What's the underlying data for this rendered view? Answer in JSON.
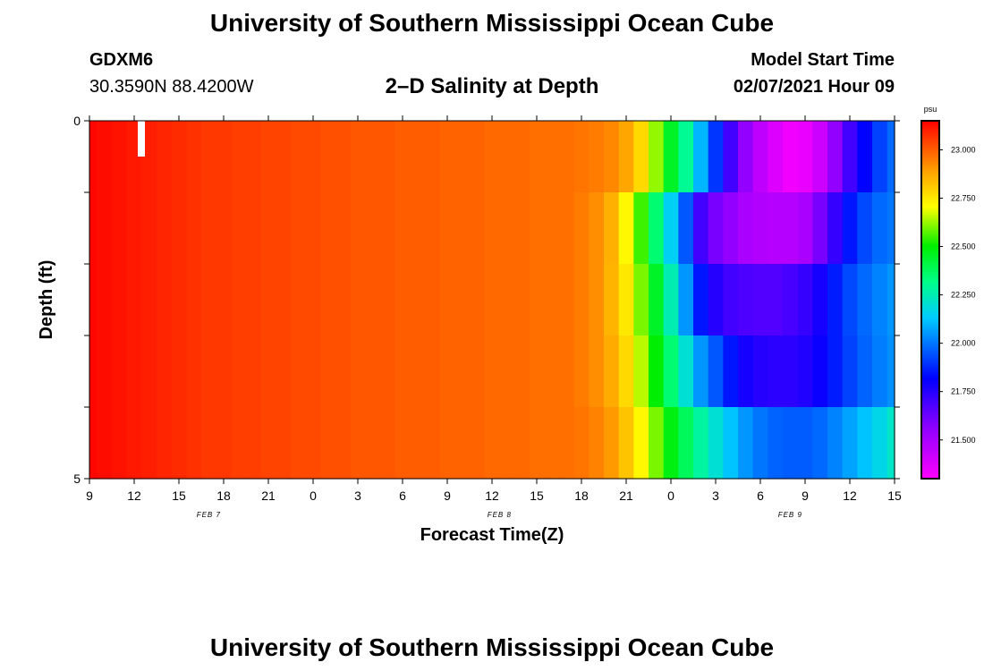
{
  "header": {
    "title": "University of Southern Mississippi Ocean Cube",
    "station": "GDXM6",
    "coords": "30.3590N 88.4200W",
    "subtitle": "2–D Salinity at Depth",
    "start_label": "Model Start Time",
    "start_value": "02/07/2021 Hour 09"
  },
  "footer": {
    "title": "University of Southern Mississippi Ocean Cube"
  },
  "chart_data": {
    "type": "heatmap",
    "title": "2–D Salinity at Depth",
    "xlabel": "Forecast Time(Z)",
    "ylabel": "Depth (ft)",
    "x_ticks": [
      "9",
      "12",
      "15",
      "18",
      "21",
      "0",
      "3",
      "6",
      "9",
      "12",
      "15",
      "18",
      "21",
      "0",
      "3",
      "6",
      "9",
      "12",
      "15"
    ],
    "x_hours_from_start": [
      0,
      3,
      6,
      9,
      12,
      15,
      18,
      21,
      24,
      27,
      30,
      33,
      36,
      39,
      42,
      45,
      48,
      51,
      54
    ],
    "x_range_hours": [
      0,
      54
    ],
    "date_labels": [
      {
        "text": "FEB 7",
        "hour": 8
      },
      {
        "text": "FEB 8",
        "hour": 27.5
      },
      {
        "text": "FEB 9",
        "hour": 47
      }
    ],
    "y_tick_labels": [
      "0",
      "5"
    ],
    "y_range_ft": [
      0,
      5
    ],
    "depth_layers_ft": [
      0,
      1,
      2,
      3,
      4
    ],
    "layer_height_ft": 1,
    "hour_step": 1,
    "colorbar": {
      "unit": "psu",
      "min": 21.3,
      "max": 23.15,
      "ticks": [
        23.0,
        22.75,
        22.5,
        22.25,
        22.0,
        21.75,
        21.5
      ],
      "tick_labels": [
        "23.000",
        "22.750",
        "22.500",
        "22.250",
        "22.000",
        "21.750",
        "21.500"
      ]
    },
    "salinity_psu_by_layer": [
      [
        23.14,
        23.13,
        23.12,
        23.11,
        23.1,
        23.09,
        23.08,
        23.07,
        23.06,
        23.06,
        23.05,
        23.05,
        23.04,
        23.04,
        23.03,
        23.03,
        23.02,
        23.02,
        23.01,
        23.01,
        23.01,
        23.0,
        23.0,
        23.0,
        22.99,
        22.99,
        22.99,
        22.98,
        22.98,
        22.98,
        22.97,
        22.97,
        22.97,
        22.96,
        22.95,
        22.93,
        22.88,
        22.78,
        22.62,
        22.45,
        22.3,
        22.1,
        21.9,
        21.7,
        21.55,
        21.45,
        21.38,
        21.33,
        21.35,
        21.42,
        21.55,
        21.7,
        21.82,
        21.92,
        21.98
      ],
      [
        23.14,
        23.13,
        23.12,
        23.11,
        23.1,
        23.09,
        23.08,
        23.07,
        23.06,
        23.06,
        23.05,
        23.05,
        23.04,
        23.04,
        23.03,
        23.03,
        23.02,
        23.02,
        23.01,
        23.01,
        23.01,
        23.0,
        23.0,
        23.0,
        22.99,
        22.99,
        22.99,
        22.98,
        22.98,
        22.98,
        22.97,
        22.97,
        22.97,
        22.95,
        22.92,
        22.86,
        22.72,
        22.55,
        22.35,
        22.15,
        21.95,
        21.7,
        21.6,
        21.55,
        21.5,
        21.48,
        21.47,
        21.47,
        21.5,
        21.6,
        21.72,
        21.85,
        21.93,
        21.98,
        22.0
      ],
      [
        23.14,
        23.13,
        23.12,
        23.11,
        23.1,
        23.09,
        23.08,
        23.07,
        23.06,
        23.06,
        23.05,
        23.05,
        23.04,
        23.04,
        23.03,
        23.03,
        23.02,
        23.02,
        23.01,
        23.01,
        23.01,
        23.0,
        23.0,
        23.0,
        22.99,
        22.99,
        22.99,
        22.98,
        22.98,
        22.98,
        22.97,
        22.97,
        22.97,
        22.95,
        22.92,
        22.85,
        22.75,
        22.6,
        22.45,
        22.25,
        22.05,
        21.85,
        21.75,
        21.7,
        21.68,
        21.67,
        21.67,
        21.69,
        21.72,
        21.78,
        21.86,
        21.93,
        21.98,
        22.02,
        22.05
      ],
      [
        23.14,
        23.13,
        23.12,
        23.11,
        23.1,
        23.09,
        23.08,
        23.07,
        23.06,
        23.06,
        23.05,
        23.05,
        23.04,
        23.04,
        23.03,
        23.03,
        23.02,
        23.02,
        23.01,
        23.01,
        23.01,
        23.0,
        23.0,
        23.0,
        22.99,
        22.99,
        22.99,
        22.98,
        22.98,
        22.98,
        22.97,
        22.97,
        22.97,
        22.95,
        22.92,
        22.87,
        22.78,
        22.65,
        22.5,
        22.35,
        22.2,
        22.05,
        21.95,
        21.85,
        21.78,
        21.75,
        21.74,
        21.74,
        21.76,
        21.8,
        21.86,
        21.92,
        21.97,
        22.01,
        22.04
      ],
      [
        23.14,
        23.13,
        23.12,
        23.11,
        23.1,
        23.09,
        23.08,
        23.07,
        23.06,
        23.06,
        23.05,
        23.05,
        23.04,
        23.04,
        23.03,
        23.03,
        23.02,
        23.02,
        23.01,
        23.01,
        23.01,
        23.0,
        23.0,
        23.0,
        22.99,
        22.99,
        22.99,
        22.98,
        22.98,
        22.98,
        22.97,
        22.97,
        22.97,
        22.96,
        22.94,
        22.9,
        22.82,
        22.72,
        22.6,
        22.48,
        22.38,
        22.28,
        22.2,
        22.12,
        22.05,
        22.0,
        21.97,
        21.96,
        21.96,
        21.98,
        22.02,
        22.07,
        22.12,
        22.17,
        22.22
      ]
    ]
  }
}
